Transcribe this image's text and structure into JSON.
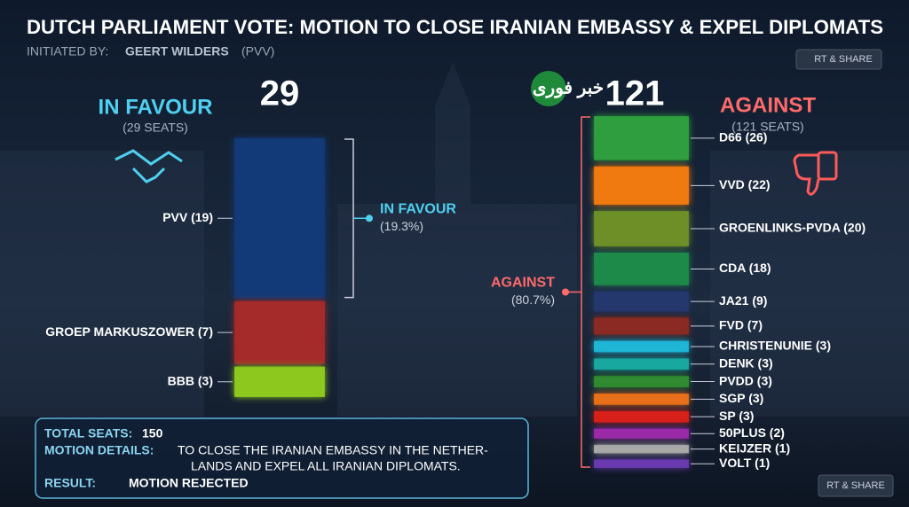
{
  "header": {
    "title": "DUTCH PARLIAMENT VOTE: MOTION TO CLOSE IRANIAN EMBASSY & EXPEL DIPLOMATS",
    "initiated_label": "INITIATED BY:",
    "initiator": "GEERT WILDERS",
    "initiator_party": "(PVV)",
    "share_top": "RT & SHARE",
    "share_bottom": "RT & SHARE",
    "watermark": "خبر فوری"
  },
  "chart_data": {
    "type": "stacked-column",
    "groups": [
      {
        "name": "IN FAVOUR",
        "total": 29,
        "seats_label": "(29 SEATS)",
        "share_name": "IN FAVOUR",
        "share": 19.3,
        "share_label": "(19.3%)",
        "accent": "#4fd0f0",
        "values": [
          19,
          7,
          3
        ],
        "value_labels": [
          "PVV (19)",
          "GROEP MARKUSZOWER (7)",
          "BBB (3)"
        ],
        "colors": [
          "#123a78",
          "#a52a2a",
          "#8cc81e"
        ]
      },
      {
        "name": "AGAINST",
        "total": 121,
        "seats_label": "(121 SEATS)",
        "share_name": "AGAINST",
        "share": 80.7,
        "share_label": "(80.7%)",
        "accent": "#ff6a6a",
        "values": [
          26,
          22,
          20,
          18,
          9,
          7,
          3,
          3,
          3,
          3,
          3,
          2,
          1,
          1
        ],
        "value_labels": [
          "D66 (26)",
          "VVD (22)",
          "GROENLINKS-PVDA (20)",
          "CDA (18)",
          "JA21 (9)",
          "FVD (7)",
          "CHRISTENUNIE (3)",
          "DENK (3)",
          "PVDD (3)",
          "SGP (3)",
          "SP (3)",
          "50PLUS (2)",
          "KEIJZER (1)",
          "VOLT (1)"
        ],
        "colors": [
          "#2e9e3e",
          "#f07a10",
          "#6e8e28",
          "#1e8a4a",
          "#24386e",
          "#8a2a22",
          "#1fb6d6",
          "#18a8a0",
          "#2f8a30",
          "#e8701a",
          "#d8201a",
          "#9a2aa8",
          "#a8a8a8",
          "#6a3ab0"
        ]
      }
    ]
  },
  "info": {
    "total_label": "TOTAL SEATS:",
    "total_value": "150",
    "details_label": "MOTION DETAILS:",
    "details_lines": [
      "TO CLOSE THE IRANIAN EMBASSY IN THE NETHER-",
      "LANDS AND EXPEL ALL IRANIAN DIPLOMATS."
    ],
    "result_label": "RESULT:",
    "result_value": "MOTION REJECTED"
  }
}
